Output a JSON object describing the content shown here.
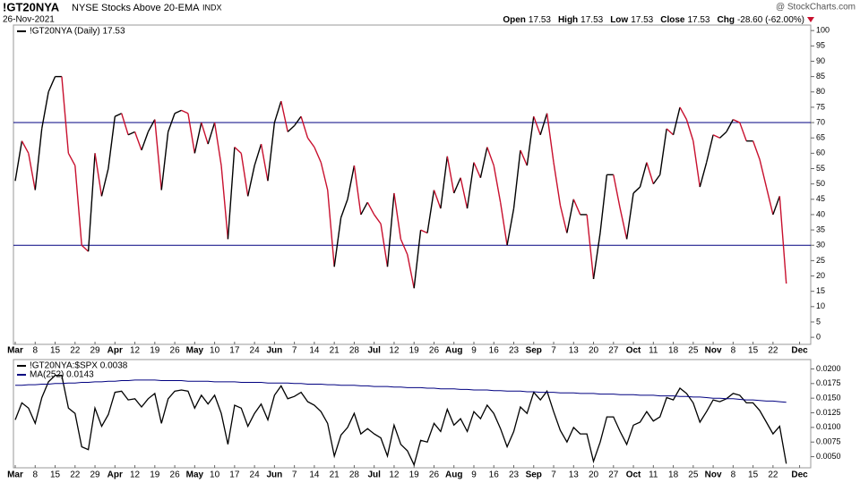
{
  "header": {
    "symbol": "!GT20NYA",
    "name": "NYSE Stocks Above 20-EMA",
    "exchange": "INDX",
    "date": "26-Nov-2021",
    "source": "@ StockCharts.com",
    "quote": [
      {
        "label": "Open",
        "value": "17.53"
      },
      {
        "label": "High",
        "value": "17.53"
      },
      {
        "label": "Low",
        "value": "17.53"
      },
      {
        "label": "Close",
        "value": "17.53"
      },
      {
        "label": "Chg",
        "value": "-28.60 (-62.00%)"
      }
    ]
  },
  "chart_data": [
    {
      "type": "line",
      "up_color": "#000000",
      "down_color": "#c8102e",
      "reference_lines": [
        30,
        70
      ],
      "reference_color": "#000080",
      "ylim": [
        -2.3,
        101.8
      ],
      "yticks": [
        0,
        5,
        10,
        15,
        20,
        25,
        30,
        35,
        40,
        45,
        50,
        55,
        60,
        65,
        70,
        75,
        80,
        85,
        90,
        95,
        100
      ],
      "categories": [
        "Mar",
        null,
        null,
        "8",
        null,
        null,
        "15",
        null,
        null,
        "22",
        null,
        null,
        "29",
        null,
        null,
        "Apr",
        null,
        null,
        "12",
        null,
        null,
        "19",
        null,
        null,
        "26",
        null,
        null,
        "May",
        null,
        null,
        "10",
        null,
        null,
        "17",
        null,
        null,
        "24",
        null,
        null,
        "Jun",
        null,
        null,
        "7",
        null,
        null,
        "14",
        null,
        null,
        "21",
        null,
        null,
        "28",
        null,
        null,
        "Jul",
        null,
        null,
        "12",
        null,
        null,
        "19",
        null,
        null,
        "26",
        null,
        null,
        "Aug",
        null,
        null,
        "9",
        null,
        null,
        "16",
        null,
        null,
        "23",
        null,
        null,
        "Sep",
        null,
        null,
        "7",
        null,
        null,
        "13",
        null,
        null,
        "20",
        null,
        null,
        "27",
        null,
        null,
        "Oct",
        null,
        null,
        "11",
        null,
        null,
        "18",
        null,
        null,
        "25",
        null,
        null,
        "Nov",
        null,
        null,
        "8",
        null,
        null,
        "15",
        null,
        null,
        "22",
        null,
        null,
        null,
        "Dec"
      ],
      "series": [
        {
          "name": "!GT20NYA (Daily) 17.53",
          "color": "#000000",
          "values": [
            51,
            64,
            60,
            48,
            68,
            80,
            85,
            85,
            60,
            56,
            30,
            28,
            60,
            46,
            55,
            72,
            73,
            66,
            67,
            61,
            67,
            71,
            48,
            67,
            73,
            74,
            73,
            60,
            70,
            63,
            70,
            56,
            32,
            62,
            60,
            46,
            56,
            63,
            51,
            70,
            77,
            67,
            69,
            72,
            65,
            62,
            57,
            48,
            23,
            39,
            45,
            56,
            40,
            44,
            40,
            37,
            23,
            47,
            32,
            27,
            16,
            35,
            34,
            48,
            42,
            59,
            47,
            52,
            42,
            57,
            52,
            62,
            56,
            44,
            30,
            42,
            61,
            56,
            72,
            66,
            73,
            57,
            43,
            34,
            45,
            40,
            40,
            19,
            34,
            53,
            53,
            42,
            32,
            47,
            49,
            57,
            50,
            53,
            68,
            66,
            75,
            71,
            64,
            49,
            57,
            66,
            65,
            67,
            71,
            70,
            64,
            64,
            58,
            49,
            40,
            46,
            17.53,
            null,
            null
          ]
        }
      ]
    },
    {
      "type": "line",
      "ylim": [
        0.0031,
        0.0216
      ],
      "yticks": [
        {
          "value": 0.005,
          "label": "0.0050"
        },
        {
          "value": 0.0075,
          "label": "0.0075"
        },
        {
          "value": 0.01,
          "label": "0.0100"
        },
        {
          "value": 0.0125,
          "label": "0.0125"
        },
        {
          "value": 0.015,
          "label": "0.0150"
        },
        {
          "value": 0.0175,
          "label": "0.0175"
        },
        {
          "value": 0.02,
          "label": "0.0200"
        }
      ],
      "categories": [
        "Mar",
        null,
        null,
        "8",
        null,
        null,
        "15",
        null,
        null,
        "22",
        null,
        null,
        "29",
        null,
        null,
        "Apr",
        null,
        null,
        "12",
        null,
        null,
        "19",
        null,
        null,
        "26",
        null,
        null,
        "May",
        null,
        null,
        "10",
        null,
        null,
        "17",
        null,
        null,
        "24",
        null,
        null,
        "Jun",
        null,
        null,
        "7",
        null,
        null,
        "14",
        null,
        null,
        "21",
        null,
        null,
        "28",
        null,
        null,
        "Jul",
        null,
        null,
        "12",
        null,
        null,
        "19",
        null,
        null,
        "26",
        null,
        null,
        "Aug",
        null,
        null,
        "9",
        null,
        null,
        "16",
        null,
        null,
        "23",
        null,
        null,
        "Sep",
        null,
        null,
        "7",
        null,
        null,
        "13",
        null,
        null,
        "20",
        null,
        null,
        "27",
        null,
        null,
        "Oct",
        null,
        null,
        "11",
        null,
        null,
        "18",
        null,
        null,
        "25",
        null,
        null,
        "Nov",
        null,
        null,
        "8",
        null,
        null,
        "15",
        null,
        null,
        "22",
        null,
        null,
        null,
        "Dec"
      ],
      "series": [
        {
          "name": "!GT20NYA:$SPX 0.0038",
          "color": "#000000",
          "values": [
            0.0113,
            0.0142,
            0.0133,
            0.0107,
            0.0151,
            0.0178,
            0.0189,
            0.0189,
            0.0133,
            0.0124,
            0.0067,
            0.0062,
            0.0133,
            0.0102,
            0.0122,
            0.016,
            0.0162,
            0.0147,
            0.0149,
            0.0135,
            0.0149,
            0.0158,
            0.0107,
            0.0149,
            0.0162,
            0.0164,
            0.0162,
            0.0133,
            0.0155,
            0.014,
            0.0155,
            0.0124,
            0.0071,
            0.0138,
            0.0133,
            0.0102,
            0.0124,
            0.014,
            0.0113,
            0.0155,
            0.0171,
            0.0149,
            0.0153,
            0.016,
            0.0144,
            0.0138,
            0.0127,
            0.0107,
            0.0051,
            0.0087,
            0.01,
            0.0124,
            0.0089,
            0.0098,
            0.0089,
            0.0082,
            0.0051,
            0.0104,
            0.0071,
            0.006,
            0.0036,
            0.0078,
            0.0075,
            0.0107,
            0.0093,
            0.0131,
            0.0104,
            0.0115,
            0.0093,
            0.0127,
            0.0115,
            0.0138,
            0.0124,
            0.0098,
            0.0067,
            0.0093,
            0.0135,
            0.0124,
            0.016,
            0.0147,
            0.0162,
            0.0127,
            0.0095,
            0.0075,
            0.01,
            0.0089,
            0.0089,
            0.0042,
            0.0075,
            0.0118,
            0.0118,
            0.0093,
            0.0071,
            0.0104,
            0.0109,
            0.0127,
            0.0111,
            0.0118,
            0.0151,
            0.0147,
            0.0167,
            0.0158,
            0.0142,
            0.0109,
            0.0127,
            0.0147,
            0.0144,
            0.0149,
            0.0158,
            0.0155,
            0.0142,
            0.0142,
            0.0129,
            0.0109,
            0.0089,
            0.0102,
            0.0038,
            null,
            null
          ]
        },
        {
          "name": "MA(252) 0.0143",
          "color": "#000080",
          "values": [
            0.0172,
            0.0172,
            0.0173,
            0.0173,
            0.0174,
            0.0174,
            0.0175,
            0.0175,
            0.0176,
            0.0176,
            0.0177,
            0.0177,
            0.0178,
            0.0178,
            0.0179,
            0.0179,
            0.018,
            0.018,
            0.0181,
            0.0181,
            0.0181,
            0.0181,
            0.018,
            0.018,
            0.018,
            0.018,
            0.0179,
            0.0179,
            0.0179,
            0.0179,
            0.0178,
            0.0178,
            0.0178,
            0.0178,
            0.0177,
            0.0177,
            0.0177,
            0.0177,
            0.0176,
            0.0176,
            0.0176,
            0.0176,
            0.0175,
            0.0175,
            0.0174,
            0.0174,
            0.0174,
            0.0173,
            0.0173,
            0.0172,
            0.0172,
            0.0172,
            0.0171,
            0.0171,
            0.017,
            0.017,
            0.017,
            0.0169,
            0.0169,
            0.0168,
            0.0168,
            0.0168,
            0.0167,
            0.0167,
            0.0166,
            0.0166,
            0.0166,
            0.0165,
            0.0165,
            0.0164,
            0.0164,
            0.0164,
            0.0163,
            0.0163,
            0.0162,
            0.0162,
            0.0162,
            0.0161,
            0.0161,
            0.016,
            0.016,
            0.016,
            0.0159,
            0.0159,
            0.0159,
            0.0158,
            0.0158,
            0.0158,
            0.0157,
            0.0157,
            0.0157,
            0.0156,
            0.0156,
            0.0156,
            0.0155,
            0.0155,
            0.0155,
            0.0154,
            0.0154,
            0.0154,
            0.0153,
            0.0153,
            0.0152,
            0.0152,
            0.0151,
            0.015,
            0.015,
            0.0149,
            0.0149,
            0.0148,
            0.0147,
            0.0147,
            0.0146,
            0.0145,
            0.0145,
            0.0144,
            0.0143,
            null,
            null
          ]
        }
      ]
    }
  ]
}
